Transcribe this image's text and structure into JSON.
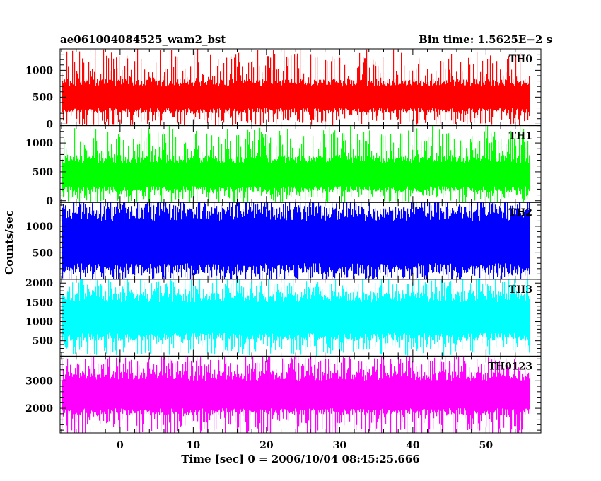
{
  "header": {
    "title": "ae061004084525_wam2_bst",
    "bin_time": "Bin time: 1.5625E−2 s"
  },
  "chart_data": {
    "type": "line",
    "title": "ae061004084525_wam2_bst",
    "subtitle": "Bin time: 1.5625E−2 s",
    "xlabel": "Time [sec] 0 = 2006/10/04 08:45:25.666",
    "ylabel": "Counts/sec",
    "xlim": [
      -8.2,
      57.5
    ],
    "x_start": -8.0,
    "x_end": 56.0,
    "bin_time": 0.015625,
    "x_ticks": [
      0,
      10,
      20,
      30,
      40,
      50
    ],
    "x_tick_labels": [
      "0",
      "10",
      "20",
      "30",
      "40",
      "50"
    ],
    "panels": [
      {
        "name": "TH0",
        "color": "#ff0000",
        "ylim": [
          -30,
          1400
        ],
        "y_ticks": [
          0,
          500,
          1000
        ],
        "y_tick_labels": [
          "0",
          "500",
          "1000"
        ],
        "floor_level": 0,
        "typical_low": 300,
        "typical_high": 700,
        "peak_level": 1350
      },
      {
        "name": "TH1",
        "color": "#00ff00",
        "ylim": [
          -30,
          1300
        ],
        "y_ticks": [
          0,
          500,
          1000
        ],
        "y_tick_labels": [
          "0",
          "500",
          "1000"
        ],
        "floor_level": 0,
        "typical_low": 250,
        "typical_high": 650,
        "peak_level": 1250
      },
      {
        "name": "TH2",
        "color": "#0000ff",
        "ylim": [
          0,
          1450
        ],
        "y_ticks": [
          500,
          1000
        ],
        "y_tick_labels": [
          "500",
          "1000"
        ],
        "floor_level": 50,
        "typical_low": 300,
        "typical_high": 1100,
        "peak_level": 1450
      },
      {
        "name": "TH3",
        "color": "#00ffff",
        "ylim": [
          100,
          2100
        ],
        "y_ticks": [
          500,
          1000,
          1500,
          2000
        ],
        "y_tick_labels": [
          "500",
          "1000",
          "1500",
          "2000"
        ],
        "floor_level": 200,
        "typical_low": 700,
        "typical_high": 1500,
        "peak_level": 2100
      },
      {
        "name": "TH0123",
        "color": "#ff00ff",
        "ylim": [
          1100,
          3900
        ],
        "y_ticks": [
          2000,
          3000
        ],
        "y_tick_labels": [
          "2000",
          "3000"
        ],
        "floor_level": 1100,
        "typical_low": 2000,
        "typical_high": 3000,
        "peak_level": 3900
      }
    ]
  }
}
